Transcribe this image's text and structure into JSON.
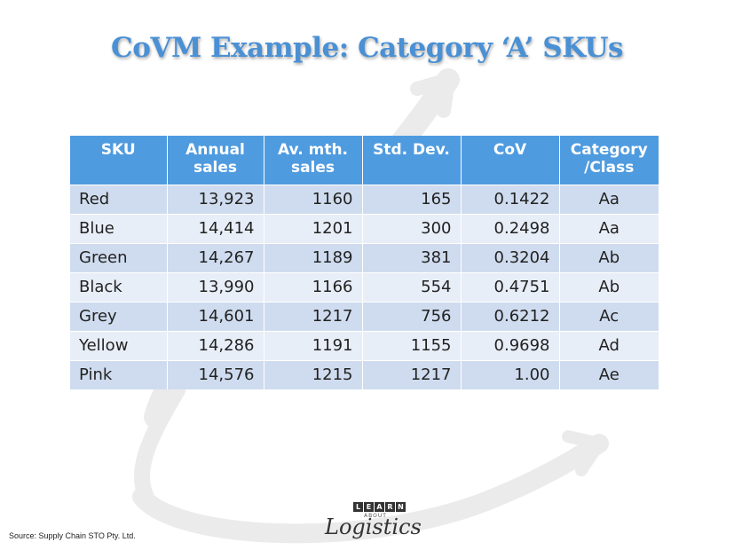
{
  "title": "CoVM Example: Category ‘A’ SKUs",
  "table": {
    "headers": [
      [
        "SKU"
      ],
      [
        "Annual",
        "sales"
      ],
      [
        "Av. mth.",
        "sales"
      ],
      [
        "Std. Dev."
      ],
      [
        "CoV"
      ],
      [
        "Category",
        "/Class"
      ]
    ],
    "rows": [
      {
        "sku": "Red",
        "annual": "13,923",
        "monthly": "1160",
        "stddev": "165",
        "cov": "0.1422",
        "category": "Aa"
      },
      {
        "sku": "Blue",
        "annual": "14,414",
        "monthly": "1201",
        "stddev": "300",
        "cov": "0.2498",
        "category": "Aa"
      },
      {
        "sku": "Green",
        "annual": "14,267",
        "monthly": "1189",
        "stddev": "381",
        "cov": "0.3204",
        "category": "Ab"
      },
      {
        "sku": "Black",
        "annual": "13,990",
        "monthly": "1166",
        "stddev": "554",
        "cov": "0.4751",
        "category": "Ab"
      },
      {
        "sku": "Grey",
        "annual": "14,601",
        "monthly": "1217",
        "stddev": "756",
        "cov": "0.6212",
        "category": "Ac"
      },
      {
        "sku": "Yellow",
        "annual": "14,286",
        "monthly": "1191",
        "stddev": "1155",
        "cov": "0.9698",
        "category": "Ad"
      },
      {
        "sku": "Pink",
        "annual": "14,576",
        "monthly": "1215",
        "stddev": "1217",
        "cov": "1.00",
        "category": "Ae"
      }
    ]
  },
  "source": "Source: Supply Chain STO Pty. Ltd.",
  "logo": {
    "learn_letters": [
      "L",
      "E",
      "A",
      "R",
      "N"
    ],
    "about": "ABOUT",
    "logistics": "Logistics"
  },
  "colors": {
    "title": "#4a90d4",
    "header_bg": "#4f9be0",
    "row_odd": "#cfdcef",
    "row_even": "#e8eef8"
  }
}
